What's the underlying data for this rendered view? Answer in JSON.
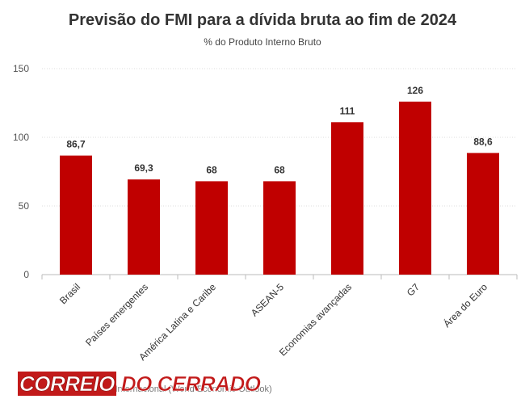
{
  "chart_data": {
    "type": "bar",
    "title": "Previsão do FMI para a dívida bruta ao fim de 2024",
    "subtitle": "% do Produto Interno Bruto",
    "categories": [
      "Brasil",
      "Países emergentes",
      "América Latina e Caribe",
      "ASEAN-5",
      "Economias avançadas",
      "G7",
      "Área do Euro"
    ],
    "values": [
      86.7,
      69.3,
      68,
      68,
      111,
      126,
      88.6
    ],
    "value_labels": [
      "86,7",
      "69,3",
      "68",
      "68",
      "111",
      "126",
      "88,6"
    ],
    "y_ticks": [
      0,
      50,
      100,
      150
    ],
    "y_tick_labels": [
      "0",
      "50",
      "100",
      "150"
    ],
    "ylim": [
      0,
      150
    ],
    "grid": true,
    "legend": "none",
    "bar_color": "#c00000"
  },
  "source": "Fonte: Fundo Monetário Internacional (World Economic Outlook)",
  "logo": {
    "word1": "CORREIO",
    "word2": "DO CERRADO",
    "color": "#c21a1a"
  }
}
